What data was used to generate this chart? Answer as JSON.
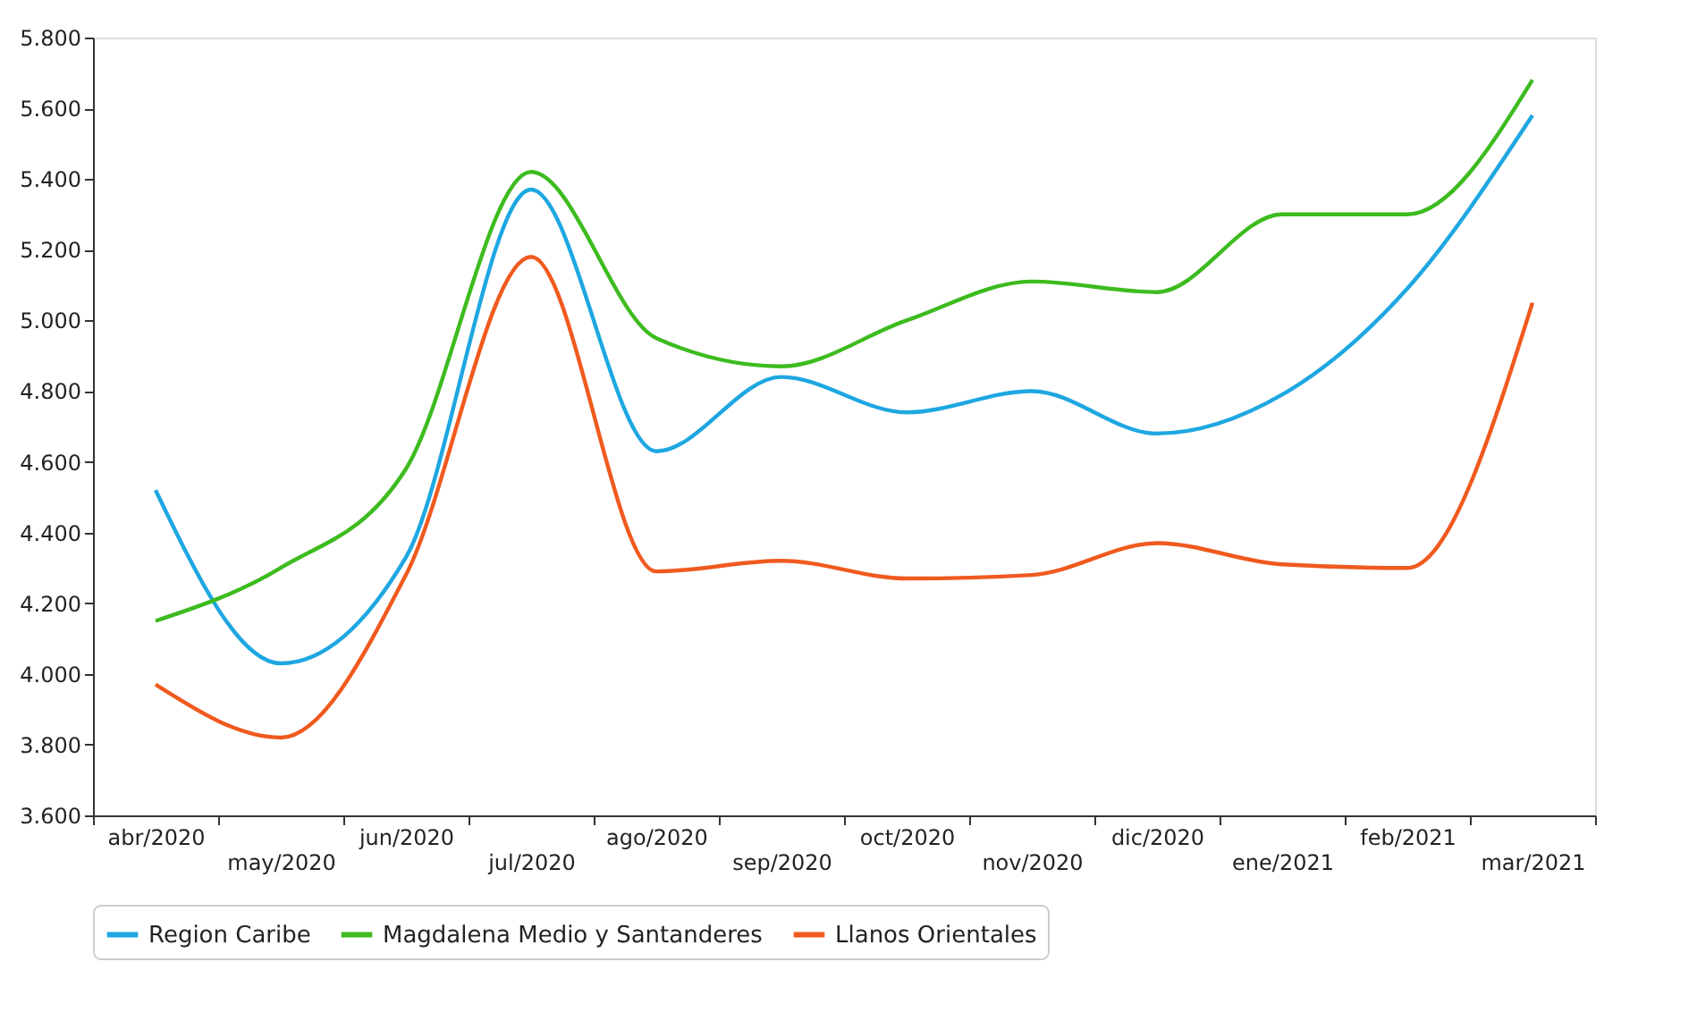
{
  "chart_data": {
    "type": "line",
    "categories": [
      "abr/2020",
      "may/2020",
      "jun/2020",
      "jul/2020",
      "ago/2020",
      "sep/2020",
      "oct/2020",
      "nov/2020",
      "dic/2020",
      "ene/2021",
      "feb/2021",
      "mar/2021"
    ],
    "series": [
      {
        "name": "Region Caribe",
        "color": "#1ea7e1",
        "values": [
          4520,
          4030,
          4330,
          5370,
          4630,
          4840,
          4740,
          4800,
          4680,
          4790,
          5090,
          5580
        ]
      },
      {
        "name": "Magdalena Medio y Santanderes",
        "color": "#3dbb1f",
        "values": [
          4150,
          4300,
          4580,
          5420,
          4950,
          4870,
          5000,
          5110,
          5080,
          5300,
          5300,
          5680
        ]
      },
      {
        "name": "Llanos Orientales",
        "color": "#f05a1e",
        "values": [
          3970,
          3820,
          4280,
          5180,
          4290,
          4320,
          4270,
          4280,
          4370,
          4310,
          4300,
          5050
        ]
      }
    ],
    "ylim": [
      3600,
      5800
    ],
    "yticks": [
      {
        "value": 3600,
        "label": "3.600"
      },
      {
        "value": 3800,
        "label": "3.800"
      },
      {
        "value": 4000,
        "label": "4.000"
      },
      {
        "value": 4200,
        "label": "4.200"
      },
      {
        "value": 4400,
        "label": "4.400"
      },
      {
        "value": 4600,
        "label": "4.600"
      },
      {
        "value": 4800,
        "label": "4.800"
      },
      {
        "value": 5000,
        "label": "5.000"
      },
      {
        "value": 5200,
        "label": "5.200"
      },
      {
        "value": 5400,
        "label": "5.400"
      },
      {
        "value": 5600,
        "label": "5.600"
      },
      {
        "value": 5800,
        "label": "5.800"
      }
    ],
    "grid": false,
    "legend": "bottom",
    "marker": "none",
    "line_style": "solid"
  }
}
